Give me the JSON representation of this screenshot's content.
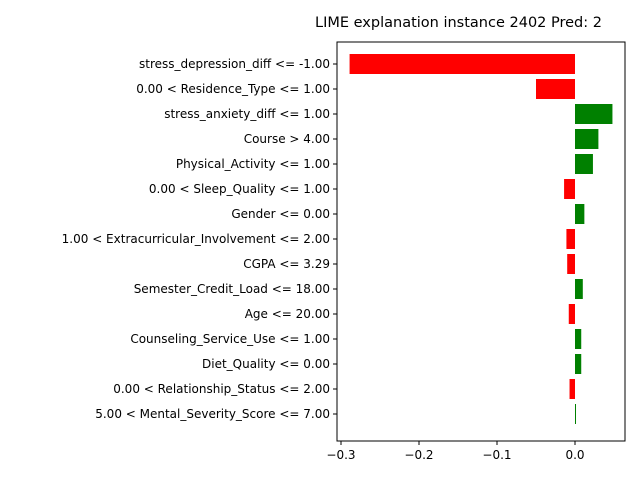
{
  "chart_data": {
    "type": "bar",
    "orientation": "horizontal",
    "title": "LIME explanation instance 2402 Pred: 2",
    "xlabel": "",
    "ylabel": "",
    "xlim": [
      -0.3,
      0.065
    ],
    "xticks": [
      -0.3,
      -0.2,
      -0.1,
      0.0
    ],
    "xtick_labels": [
      "−0.3",
      "−0.2",
      "−0.1",
      "0.0"
    ],
    "grid": false,
    "positive_color": "#008000",
    "negative_color": "#ff0000",
    "categories": [
      "stress_depression_diff <= -1.00",
      "0.00 < Residence_Type <= 1.00",
      "stress_anxiety_diff <= 1.00",
      "Course > 4.00",
      "Physical_Activity <= 1.00",
      "0.00 < Sleep_Quality <= 1.00",
      "Gender <= 0.00",
      "1.00 < Extracurricular_Involvement <= 2.00",
      "CGPA <= 3.29",
      "Semester_Credit_Load <= 18.00",
      "Age <= 20.00",
      "Counseling_Service_Use <= 1.00",
      "Diet_Quality <= 0.00",
      "0.00 < Relationship_Status <= 2.00",
      "5.00 < Mental_Severity_Score <= 7.00"
    ],
    "values": [
      -0.289,
      -0.05,
      0.048,
      0.03,
      0.023,
      -0.014,
      0.012,
      -0.011,
      -0.01,
      0.01,
      -0.008,
      0.008,
      0.008,
      -0.007,
      0.001
    ]
  }
}
